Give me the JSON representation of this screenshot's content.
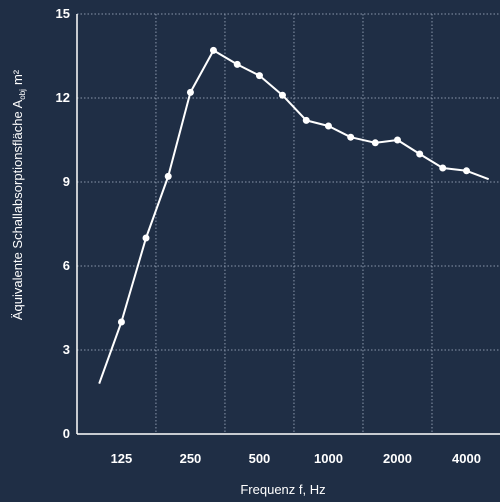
{
  "chart_data": {
    "type": "line",
    "title": "",
    "xlabel": "Frequenz f, Hz",
    "ylabel": {
      "text": "Äquivalente Schallabsorptionsfläche A",
      "subscript": "obj",
      "unit": "m²"
    },
    "x_tick_labels": [
      "125",
      "250",
      "500",
      "1000",
      "2000",
      "4000"
    ],
    "y_tick_labels": [
      "0",
      "3",
      "6",
      "9",
      "12",
      "15"
    ],
    "ylim": [
      0,
      15
    ],
    "x_scale": "log",
    "grid": true,
    "series": [
      {
        "x": [
          100,
          125,
          160,
          200,
          250,
          315,
          400,
          500,
          630,
          800,
          1000,
          1250,
          1600,
          2000,
          2500,
          3150,
          4000,
          5000
        ],
        "y": [
          1.8,
          4.0,
          7.0,
          9.2,
          12.2,
          13.7,
          13.2,
          12.8,
          12.1,
          11.2,
          11.0,
          10.6,
          10.4,
          10.5,
          10.0,
          9.5,
          9.4,
          9.1
        ],
        "markers": [
          false,
          true,
          true,
          true,
          true,
          true,
          true,
          true,
          true,
          true,
          true,
          true,
          true,
          true,
          true,
          true,
          true,
          false
        ]
      }
    ],
    "colors": {
      "background": "#1f2e45",
      "line": "#ffffff",
      "grid": "#8a97ab"
    }
  }
}
